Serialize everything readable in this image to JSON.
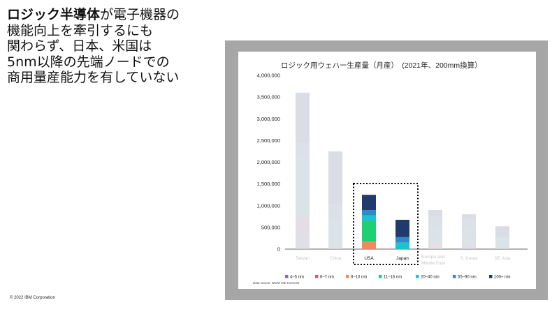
{
  "headline": {
    "bold": "ロジック半導体",
    "rest_line1": "が電子機器の",
    "line2": "機能向上を牽引するにも",
    "line3": "関わらず、日本、米国は",
    "line4": "5nm以降の先端ノードでの",
    "line5": "商用量産能力を有していない"
  },
  "footer": {
    "copyright": "© 2022 IBM Corporation"
  },
  "colors": {
    "frame": "#a6a6a6",
    "highlight_box": "#000000",
    "muted_bar": "#d9dbe2"
  },
  "chart_data": {
    "type": "bar",
    "stacked": true,
    "title": "ロジック用ウェハー生産量（月産）　(2021年、200mm換算）",
    "xlabel": "",
    "ylabel": "",
    "ylim": [
      0,
      4000000
    ],
    "yticks": [
      "0",
      "500,000",
      "1,000,000",
      "1,500,000",
      "2,000,000",
      "2,500,000",
      "3,000,000",
      "3,500,000",
      "4,000,000"
    ],
    "grid": false,
    "legend_position": "bottom",
    "categories": [
      "Taiwan",
      "China",
      "USA",
      "Japan",
      "Europe and Middle East",
      "S. Korea",
      "SE Asia"
    ],
    "highlighted_categories": [
      "USA",
      "Japan"
    ],
    "highlight_box": "dotted",
    "series": [
      {
        "name": "4–5 nm",
        "color": "#8a62c9",
        "values": [
          350000,
          0,
          0,
          0,
          0,
          150000,
          0
        ]
      },
      {
        "name": "6–7 nm",
        "color": "#e8566e",
        "values": [
          400000,
          0,
          0,
          0,
          0,
          0,
          0
        ]
      },
      {
        "name": "8–10 nm",
        "color": "#f08a5d",
        "values": [
          0,
          0,
          175000,
          0,
          150000,
          0,
          0
        ]
      },
      {
        "name": "11–16 nm",
        "color": "#1fcf73",
        "values": [
          250000,
          150000,
          475000,
          0,
          100000,
          100000,
          0
        ]
      },
      {
        "name": "20–40 nm",
        "color": "#1cc2cf",
        "values": [
          1150000,
          500000,
          125000,
          150000,
          250000,
          250000,
          275000
        ]
      },
      {
        "name": "55–90 nm",
        "color": "#2b8cc9",
        "values": [
          300000,
          400000,
          125000,
          125000,
          250000,
          200000,
          0
        ]
      },
      {
        "name": "100+ nm",
        "color": "#1f3a6b",
        "values": [
          1150000,
          1200000,
          350000,
          400000,
          150000,
          100000,
          250000
        ]
      }
    ],
    "data_source": "Data source: World Fab Forecast"
  }
}
